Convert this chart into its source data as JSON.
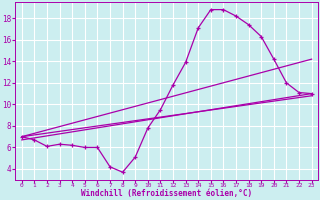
{
  "xlabel": "Windchill (Refroidissement éolien,°C)",
  "bg_color": "#cceef0",
  "grid_color": "#ffffff",
  "line_color": "#aa00aa",
  "x_ticks": [
    0,
    1,
    2,
    3,
    4,
    5,
    6,
    7,
    8,
    9,
    10,
    11,
    12,
    13,
    14,
    15,
    16,
    17,
    18,
    19,
    20,
    21,
    22,
    23
  ],
  "y_ticks": [
    4,
    6,
    8,
    10,
    12,
    14,
    16,
    18
  ],
  "xlim": [
    -0.5,
    23.5
  ],
  "ylim": [
    3.0,
    19.5
  ],
  "series1_x": [
    0,
    1,
    2,
    3,
    4,
    5,
    6,
    7,
    8,
    9,
    10,
    11,
    12,
    13,
    14,
    15,
    16,
    17,
    18,
    19,
    20,
    21,
    22,
    23
  ],
  "series1_y": [
    7.0,
    6.7,
    6.1,
    6.3,
    6.2,
    6.0,
    6.0,
    4.2,
    3.7,
    5.1,
    7.8,
    9.5,
    11.8,
    13.9,
    17.1,
    18.8,
    18.8,
    18.2,
    17.4,
    16.3,
    14.2,
    12.0,
    11.1,
    11.0
  ],
  "series2_x": [
    0,
    23
  ],
  "series2_y": [
    7.0,
    10.8
  ],
  "series3_x": [
    0,
    23
  ],
  "series3_y": [
    6.7,
    11.0
  ],
  "series4_x": [
    0,
    23
  ],
  "series4_y": [
    7.0,
    14.2
  ]
}
